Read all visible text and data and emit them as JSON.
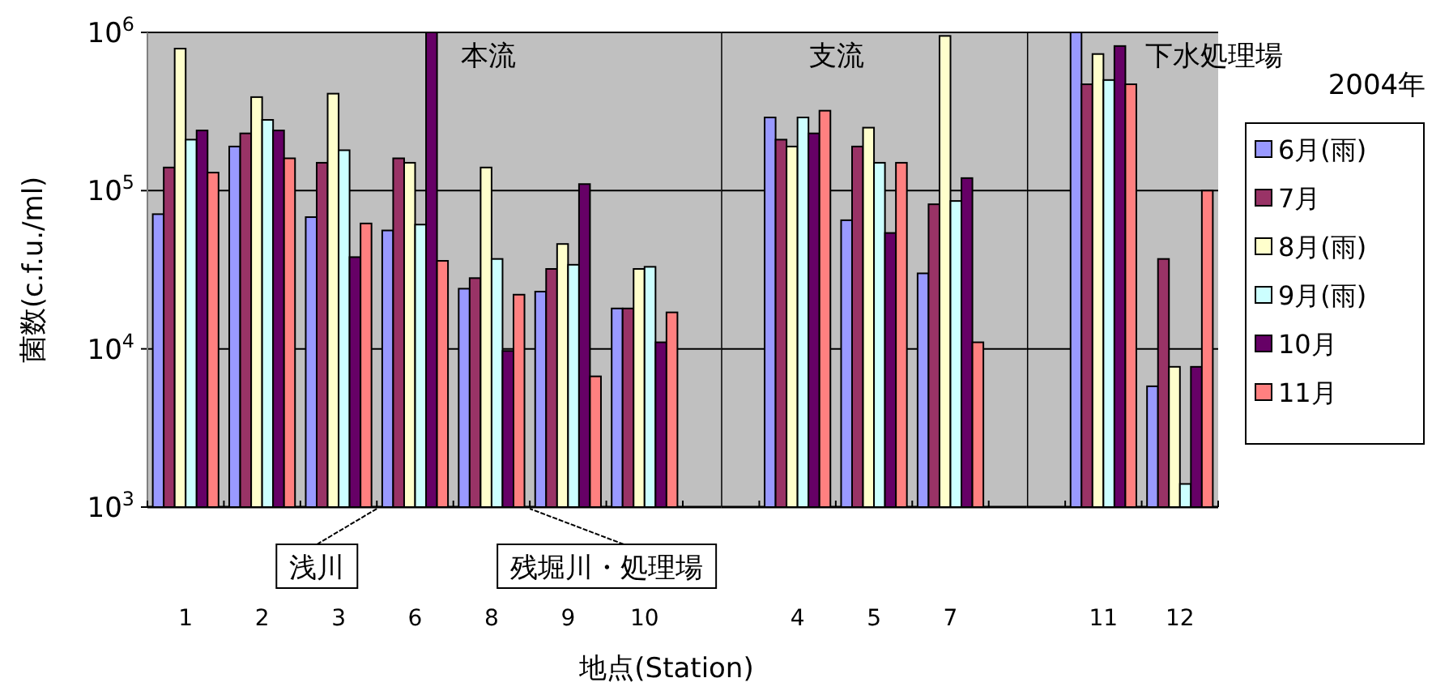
{
  "chart_data": [
    {
      "type": "bar",
      "ylabel": "菌数(c.f.u./ml)",
      "xlabel": "地点(Station)",
      "categories": [
        "1",
        "2",
        "3",
        "6",
        "8",
        "9",
        "10"
      ],
      "log": "y",
      "grid": "y",
      "ylim": [
        1000,
        1000000
      ],
      "yticks": [
        {
          "value": 1000,
          "label": "10$^{3}$"
        },
        {
          "value": 10000,
          "label": "10$^{4}$"
        },
        {
          "value": 100000,
          "label": "10$^{5}$"
        },
        {
          "value": 1000000,
          "label": "10$^{6}$"
        }
      ],
      "annotations": [
        "本流",
        "浅川",
        "残堀川・処理場"
      ],
      "series": [
        {
          "color": "#9999ff",
          "values": [
            71000,
            190000,
            68000,
            56000,
            24000,
            23000,
            18000
          ]
        },
        {
          "color": "#993366",
          "values": [
            140000,
            230000,
            150000,
            160000,
            28000,
            32000,
            18000
          ]
        },
        {
          "color": "#ffffcc",
          "values": [
            790000,
            390000,
            410000,
            150000,
            140000,
            46000,
            32000
          ]
        },
        {
          "color": "#ccffff",
          "values": [
            210000,
            280000,
            180000,
            61000,
            37000,
            34000,
            33000
          ]
        },
        {
          "color": "#660066",
          "values": [
            240000,
            240000,
            38000,
            1000000,
            9700,
            110000,
            11000
          ]
        },
        {
          "color": "#ff8080",
          "values": [
            130000,
            160000,
            62000,
            36000,
            22000,
            6700,
            17000
          ]
        }
      ]
    },
    {
      "type": "bar",
      "categories": [
        "4",
        "5",
        "7"
      ],
      "log": "y",
      "grid": "y",
      "ylim": [
        1000,
        1000000
      ],
      "tick_labels": "x",
      "yticks": [
        1000,
        10000,
        100000,
        1000000
      ],
      "annotations": [
        "支流"
      ],
      "series": [
        {
          "color": "#9999ff",
          "values": [
            290000,
            65000,
            30000
          ]
        },
        {
          "color": "#993366",
          "values": [
            210000,
            190000,
            82000
          ]
        },
        {
          "color": "#ffffcc",
          "values": [
            190000,
            250000,
            950000
          ]
        },
        {
          "color": "#ccffff",
          "values": [
            290000,
            150000,
            86000
          ]
        },
        {
          "color": "#660066",
          "values": [
            230000,
            54000,
            120000
          ]
        },
        {
          "color": "#ff8080",
          "values": [
            320000,
            150000,
            11000
          ]
        }
      ]
    },
    {
      "type": "bar",
      "categories": [
        "11",
        "12"
      ],
      "log": "y",
      "grid": "y",
      "ylim": [
        1000,
        1000000
      ],
      "tick_labels": "x",
      "yticks": [
        1000,
        10000,
        100000,
        1000000
      ],
      "annotations": [
        "下水処理場"
      ],
      "legend": "right",
      "legend_title": "2004年",
      "series": [
        {
          "name": "6月(雨)",
          "color": "#9999ff",
          "values": [
            1000000,
            5800
          ]
        },
        {
          "name": "7月",
          "color": "#993366",
          "values": [
            470000,
            37000
          ]
        },
        {
          "name": "8月(雨)",
          "color": "#ffffcc",
          "values": [
            730000,
            7700
          ]
        },
        {
          "name": "9月(雨)",
          "color": "#ccffff",
          "values": [
            500000,
            1400
          ]
        },
        {
          "name": "10月",
          "color": "#660066",
          "values": [
            820000,
            7700
          ]
        },
        {
          "name": "11月",
          "color": "#ff8080",
          "values": [
            470000,
            100000
          ]
        }
      ]
    }
  ]
}
